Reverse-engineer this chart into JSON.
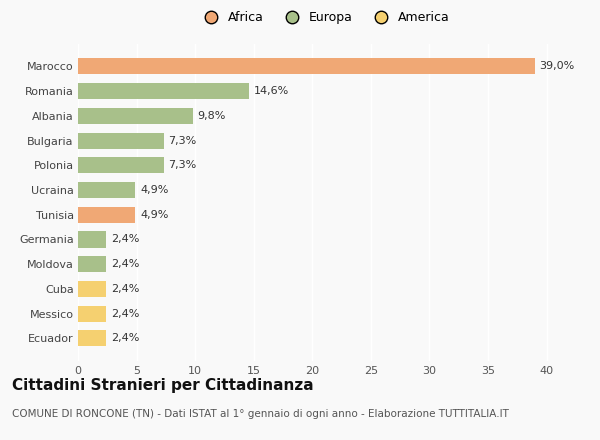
{
  "categories": [
    "Marocco",
    "Romania",
    "Albania",
    "Bulgaria",
    "Polonia",
    "Ucraina",
    "Tunisia",
    "Germania",
    "Moldova",
    "Cuba",
    "Messico",
    "Ecuador"
  ],
  "values": [
    39.0,
    14.6,
    9.8,
    7.3,
    7.3,
    4.9,
    4.9,
    2.4,
    2.4,
    2.4,
    2.4,
    2.4
  ],
  "labels": [
    "39,0%",
    "14,6%",
    "9,8%",
    "7,3%",
    "7,3%",
    "4,9%",
    "4,9%",
    "2,4%",
    "2,4%",
    "2,4%",
    "2,4%",
    "2,4%"
  ],
  "colors": [
    "#F0A875",
    "#A8C08A",
    "#A8C08A",
    "#A8C08A",
    "#A8C08A",
    "#A8C08A",
    "#F0A875",
    "#A8C08A",
    "#A8C08A",
    "#F5D070",
    "#F5D070",
    "#F5D070"
  ],
  "legend_labels": [
    "Africa",
    "Europa",
    "America"
  ],
  "legend_colors": [
    "#F0A875",
    "#A8C08A",
    "#F5D070"
  ],
  "title": "Cittadini Stranieri per Cittadinanza",
  "subtitle": "COMUNE DI RONCONE (TN) - Dati ISTAT al 1° gennaio di ogni anno - Elaborazione TUTTITALIA.IT",
  "xlim": [
    0,
    42
  ],
  "xticks": [
    0,
    5,
    10,
    15,
    20,
    25,
    30,
    35,
    40
  ],
  "background_color": "#f9f9f9",
  "bar_height": 0.65,
  "title_fontsize": 11,
  "subtitle_fontsize": 7.5,
  "label_fontsize": 8,
  "tick_fontsize": 8,
  "legend_fontsize": 9
}
